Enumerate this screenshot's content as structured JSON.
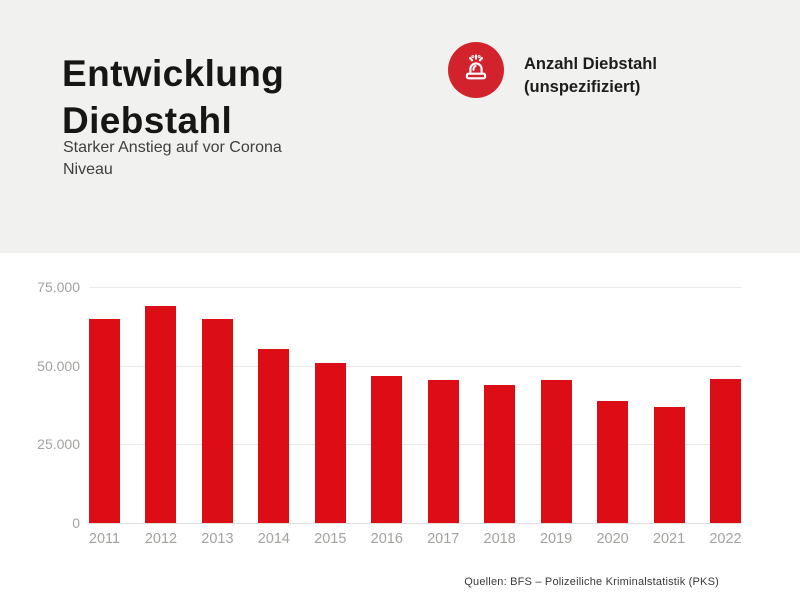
{
  "page": {
    "background": "#ffffff",
    "header_background": "#f1f1ef"
  },
  "header": {
    "title": "Entwicklung Diebstahl",
    "subtitle": "Starker Anstieg auf vor Corona Niveau",
    "legend": {
      "icon": "siren-icon",
      "icon_circle_color": "#d2232c",
      "label_line1": "Anzahl Diebstahl",
      "label_line2": "(unspezifiziert)"
    }
  },
  "footer": {
    "source": "Quellen: BFS – Polizeiliche Kriminalstatistik (PKS)"
  },
  "chart_data": {
    "type": "bar",
    "title": "Entwicklung Diebstahl",
    "series_name": "Anzahl Diebstahl (unspezifiziert)",
    "categories": [
      "2011",
      "2012",
      "2013",
      "2014",
      "2015",
      "2016",
      "2017",
      "2018",
      "2019",
      "2020",
      "2021",
      "2022"
    ],
    "values": [
      64700,
      69100,
      64800,
      55400,
      50900,
      46600,
      45400,
      44000,
      45600,
      38900,
      36900,
      45800
    ],
    "xlabel": "",
    "ylabel": "",
    "ylim": [
      0,
      75000
    ],
    "yticks": [
      {
        "value": 75000,
        "label": "75.000"
      },
      {
        "value": 50000,
        "label": "50.000"
      },
      {
        "value": 25000,
        "label": "25.000"
      },
      {
        "value": 0,
        "label": "0"
      }
    ],
    "grid": true,
    "legend_position": "top-right",
    "bar_color": "#dc0d15",
    "axis_label_color": "#a3a29f"
  }
}
